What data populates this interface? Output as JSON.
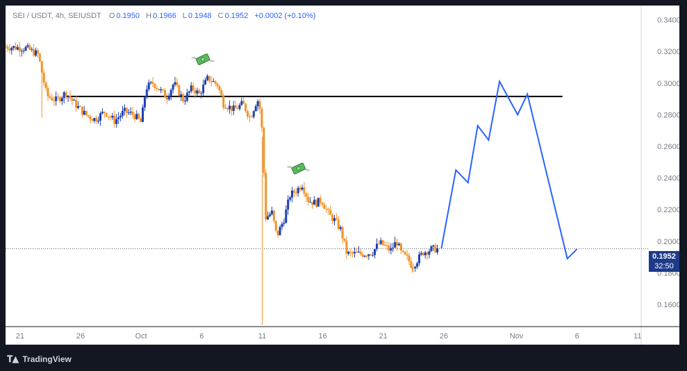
{
  "legend": {
    "symbol": "SEI / USDT, 4h, SEIUSDT",
    "open_label": "O",
    "open": "0.1950",
    "high_label": "H",
    "high": "0.1966",
    "low_label": "L",
    "low": "0.1948",
    "close_label": "C",
    "close": "0.1952",
    "change": "+0.0002 (+0.10%)"
  },
  "price_tag": {
    "price": "0.1952",
    "countdown": "32:50"
  },
  "footer": {
    "brand": "TradingView"
  },
  "colors": {
    "up": "#1e40af",
    "down": "#f0932b",
    "projection": "#2962ff",
    "resistance": "#000000",
    "background": "#131722",
    "panel": "#ffffff"
  },
  "chart_data": {
    "type": "candlestick",
    "title": "",
    "y_ticks": [
      "0.3400",
      "0.3200",
      "0.3000",
      "0.2800",
      "0.2600",
      "0.2400",
      "0.2200",
      "0.2000",
      "0.1800",
      "0.1600"
    ],
    "ylim": [
      0.146,
      0.349
    ],
    "x_ticks": [
      {
        "label": "21",
        "day": 0
      },
      {
        "label": "26",
        "day": 5
      },
      {
        "label": "Oct",
        "day": 10
      },
      {
        "label": "6",
        "day": 15
      },
      {
        "label": "11",
        "day": 20
      },
      {
        "label": "16",
        "day": 25
      },
      {
        "label": "21",
        "day": 30
      },
      {
        "label": "26",
        "day": 35
      },
      {
        "label": "Nov",
        "day": 41
      },
      {
        "label": "6",
        "day": 46
      },
      {
        "label": "11",
        "day": 51
      }
    ],
    "xlim_days": [
      -1.2,
      51.3
    ],
    "price_path": [
      [
        -1.2,
        0.323
      ],
      [
        0.5,
        0.322
      ],
      [
        1.5,
        0.318
      ],
      [
        2.2,
        0.292
      ],
      [
        3,
        0.289
      ],
      [
        3.8,
        0.294
      ],
      [
        4.5,
        0.287
      ],
      [
        5.4,
        0.28
      ],
      [
        6.2,
        0.277
      ],
      [
        7,
        0.282
      ],
      [
        7.8,
        0.276
      ],
      [
        8.6,
        0.282
      ],
      [
        9.4,
        0.28
      ],
      [
        10,
        0.275
      ],
      [
        10.4,
        0.297
      ],
      [
        11,
        0.3
      ],
      [
        11.5,
        0.296
      ],
      [
        12.1,
        0.291
      ],
      [
        12.7,
        0.3
      ],
      [
        13.5,
        0.289
      ],
      [
        14.2,
        0.297
      ],
      [
        14.8,
        0.293
      ],
      [
        15.5,
        0.303
      ],
      [
        16.3,
        0.299
      ],
      [
        16.8,
        0.287
      ],
      [
        17.7,
        0.283
      ],
      [
        18.4,
        0.287
      ],
      [
        19,
        0.278
      ],
      [
        19.6,
        0.29
      ],
      [
        19.9,
        0.281
      ],
      [
        20,
        0.266
      ],
      [
        20.3,
        0.215
      ],
      [
        20.8,
        0.218
      ],
      [
        21.2,
        0.203
      ],
      [
        21.8,
        0.214
      ],
      [
        22.3,
        0.229
      ],
      [
        22.8,
        0.232
      ],
      [
        23.3,
        0.236
      ],
      [
        23.8,
        0.226
      ],
      [
        24.4,
        0.224
      ],
      [
        24.9,
        0.226
      ],
      [
        25.5,
        0.217
      ],
      [
        26,
        0.213
      ],
      [
        26.5,
        0.207
      ],
      [
        27,
        0.192
      ],
      [
        27.7,
        0.192
      ],
      [
        28.5,
        0.192
      ],
      [
        29.1,
        0.193
      ],
      [
        29.7,
        0.199
      ],
      [
        30.1,
        0.197
      ],
      [
        30.6,
        0.194
      ],
      [
        31.1,
        0.2
      ],
      [
        31.5,
        0.192
      ],
      [
        32,
        0.189
      ],
      [
        32.4,
        0.184
      ],
      [
        32.8,
        0.188
      ],
      [
        33.3,
        0.193
      ],
      [
        34,
        0.195
      ],
      [
        34.6,
        0.1952
      ]
    ],
    "wicks": [
      {
        "day": 1.8,
        "low": 0.278
      },
      {
        "day": 20.0,
        "low": 0.147
      },
      {
        "day": 32.4,
        "low": 0.18
      }
    ],
    "resistance_level": 0.2915,
    "resistance_range_days": [
      3.8,
      44.8
    ],
    "current_price": 0.1952,
    "projection": [
      [
        34.8,
        0.1955
      ],
      [
        36,
        0.245
      ],
      [
        37,
        0.237
      ],
      [
        37.8,
        0.273
      ],
      [
        38.7,
        0.264
      ],
      [
        39.6,
        0.301
      ],
      [
        41.1,
        0.28
      ],
      [
        41.9,
        0.293
      ],
      [
        45.2,
        0.189
      ],
      [
        46,
        0.195
      ]
    ],
    "annotations": [
      {
        "type": "emoji",
        "name": "money-with-wings",
        "day": 15.1,
        "price": 0.315
      },
      {
        "type": "emoji",
        "name": "money-with-wings",
        "day": 23.0,
        "price": 0.246
      }
    ]
  }
}
